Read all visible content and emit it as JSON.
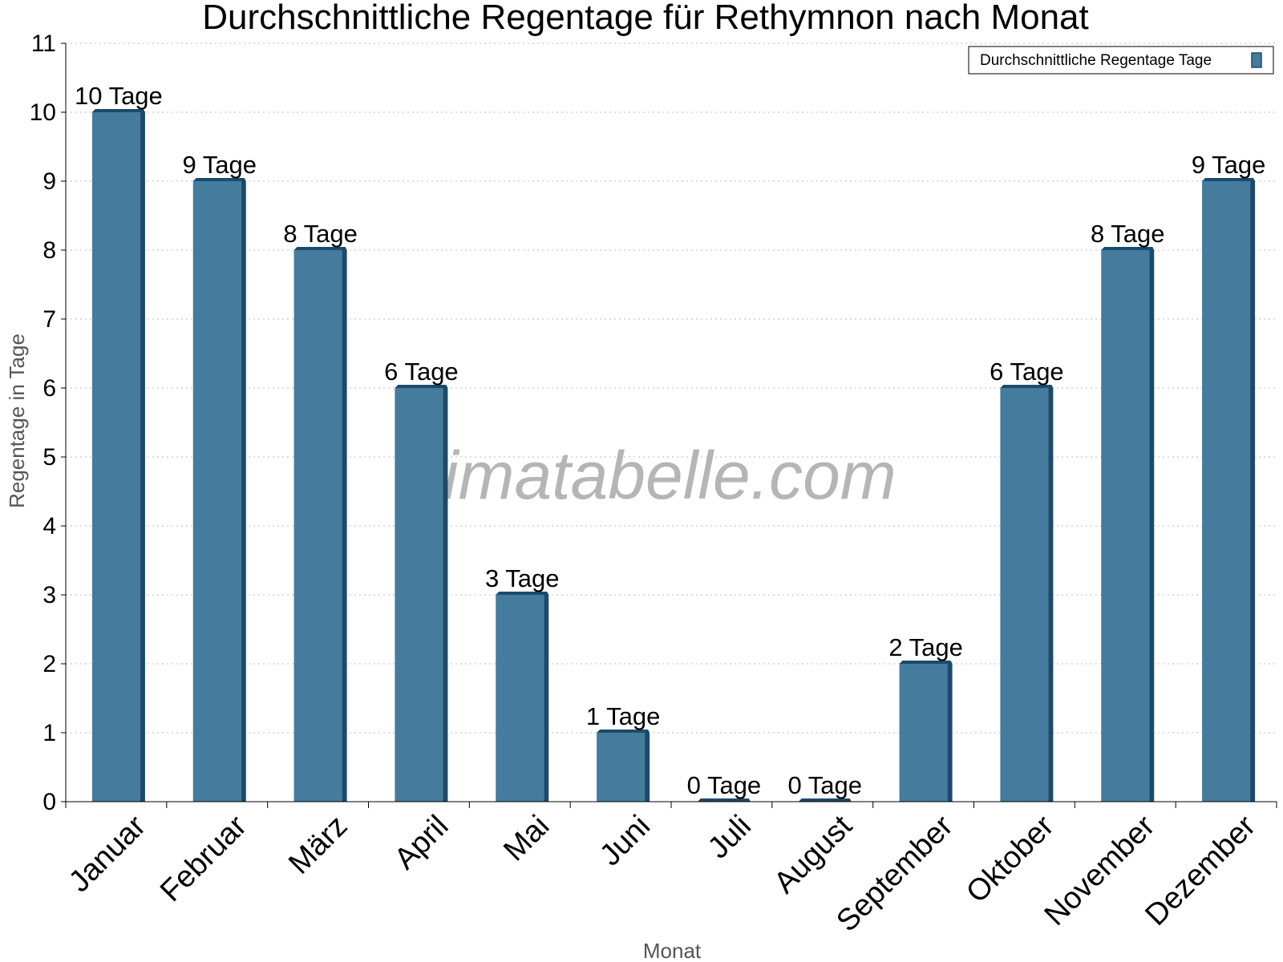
{
  "chart_data": {
    "type": "bar",
    "title": "Durchschnittliche Regentage für Rethymnon nach Monat",
    "xlabel": "Monat",
    "ylabel": "Regentage in Tage",
    "ylim": [
      0,
      11
    ],
    "yticks": [
      0,
      1,
      2,
      3,
      4,
      5,
      6,
      7,
      8,
      9,
      10,
      11
    ],
    "grid": "horizontal dotted",
    "legend_position": "top-right",
    "categories": [
      "Januar",
      "Februar",
      "März",
      "April",
      "Mai",
      "Juni",
      "Juli",
      "August",
      "September",
      "Oktober",
      "November",
      "Dezember"
    ],
    "series": [
      {
        "name": "Durchschnittliche Regentage Tage",
        "values": [
          10,
          9,
          8,
          6,
          3,
          1,
          0,
          0,
          2,
          6,
          8,
          9
        ],
        "labels": [
          "10 Tage",
          "9 Tage",
          "8 Tage",
          "6 Tage",
          "3 Tage",
          "1 Tage",
          "0 Tage",
          "0 Tage",
          "2 Tage",
          "6 Tage",
          "8 Tage",
          "9 Tage"
        ],
        "color": "#457b9d",
        "shade_color": "#1c4a6b"
      }
    ]
  },
  "watermark": "klimatabelle.com"
}
